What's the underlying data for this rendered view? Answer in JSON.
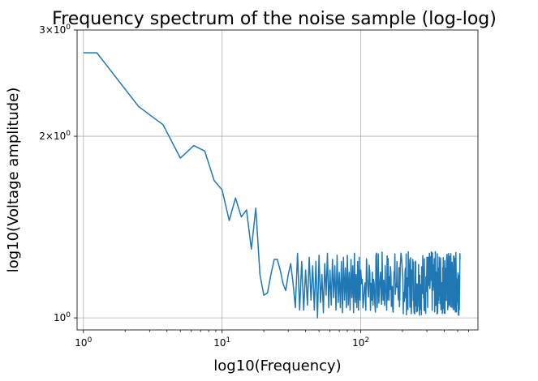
{
  "chart_data": {
    "type": "line",
    "title": "Frequency spectrum of the noise sample (log-log)",
    "xlabel": "log10(Frequency)",
    "ylabel": "log10(Voltage amplitude)",
    "xscale": "log",
    "yscale": "log",
    "xlim": [
      0.9,
      700
    ],
    "ylim": [
      0.955,
      3.0
    ],
    "grid": true,
    "color": "#1f77b4",
    "x_ticks": [
      {
        "value": 1,
        "base": "10",
        "exp": "0"
      },
      {
        "value": 10,
        "base": "10",
        "exp": "1"
      },
      {
        "value": 100,
        "base": "10",
        "exp": "2"
      }
    ],
    "y_ticks": [
      {
        "value": 1,
        "mant": "10",
        "exp": "0"
      },
      {
        "value": 2,
        "mant": "2×10",
        "exp": "0"
      },
      {
        "value": 3,
        "mant": "3×10",
        "exp": "0"
      }
    ],
    "series": [
      {
        "x": [
          1,
          1.25,
          2.5,
          3.75,
          5,
          6.25,
          7.5,
          8.75,
          10,
          11.25,
          12.5,
          13.75,
          15,
          16.25,
          17.5,
          18.75,
          20,
          21.25,
          22.5,
          23.75,
          25,
          26.25,
          27.5,
          28.75,
          30,
          31.25,
          32.5,
          33.75,
          35,
          36.25,
          37.5,
          38.75,
          40,
          41.25,
          42.5,
          43.75,
          45,
          46.25,
          47.5,
          48.75,
          50,
          51.25,
          52.5,
          53.75,
          55,
          56.25,
          57.5,
          58.75,
          60,
          61.25,
          62.5,
          63.75,
          65,
          66.25,
          67.5,
          68.75,
          70,
          71.25,
          72.5,
          73.75,
          75,
          76.25,
          77.5,
          78.75,
          80,
          81.25,
          82.5,
          83.75,
          85,
          86.25,
          87.5,
          88.75,
          90,
          91.25,
          92.5,
          93.75,
          95,
          96.25,
          97.5,
          98.75,
          100
        ],
        "y": [
          2.75,
          2.75,
          2.24,
          2.09,
          1.84,
          1.93,
          1.89,
          1.69,
          1.63,
          1.45,
          1.58,
          1.47,
          1.51,
          1.3,
          1.52,
          1.18,
          1.09,
          1.1,
          1.18,
          1.25,
          1.25,
          1.2,
          1.14,
          1.11,
          1.18,
          1.23,
          1.14,
          1.04,
          1.28,
          1.03,
          1.24,
          1.03,
          1.2,
          1.05,
          1.26,
          1.07,
          1.22,
          1.03,
          1.24,
          1.0,
          1.27,
          1.06,
          1.18,
          1.02,
          1.23,
          1.09,
          1.28,
          1.04,
          1.2,
          1.05,
          1.25,
          1.08,
          1.22,
          1.03,
          1.27,
          1.06,
          1.19,
          1.04,
          1.24,
          1.02,
          1.26,
          1.07,
          1.21,
          1.04,
          1.27,
          1.05,
          1.19,
          1.03,
          1.25,
          1.08,
          1.22,
          1.02,
          1.28,
          1.06,
          1.18,
          1.04,
          1.24,
          1.03,
          1.26,
          1.07,
          1.2
        ],
        "noise_band": {
          "x_from": 100,
          "x_to": 520,
          "y_min": 1.01,
          "y_max": 1.29
        }
      }
    ]
  }
}
